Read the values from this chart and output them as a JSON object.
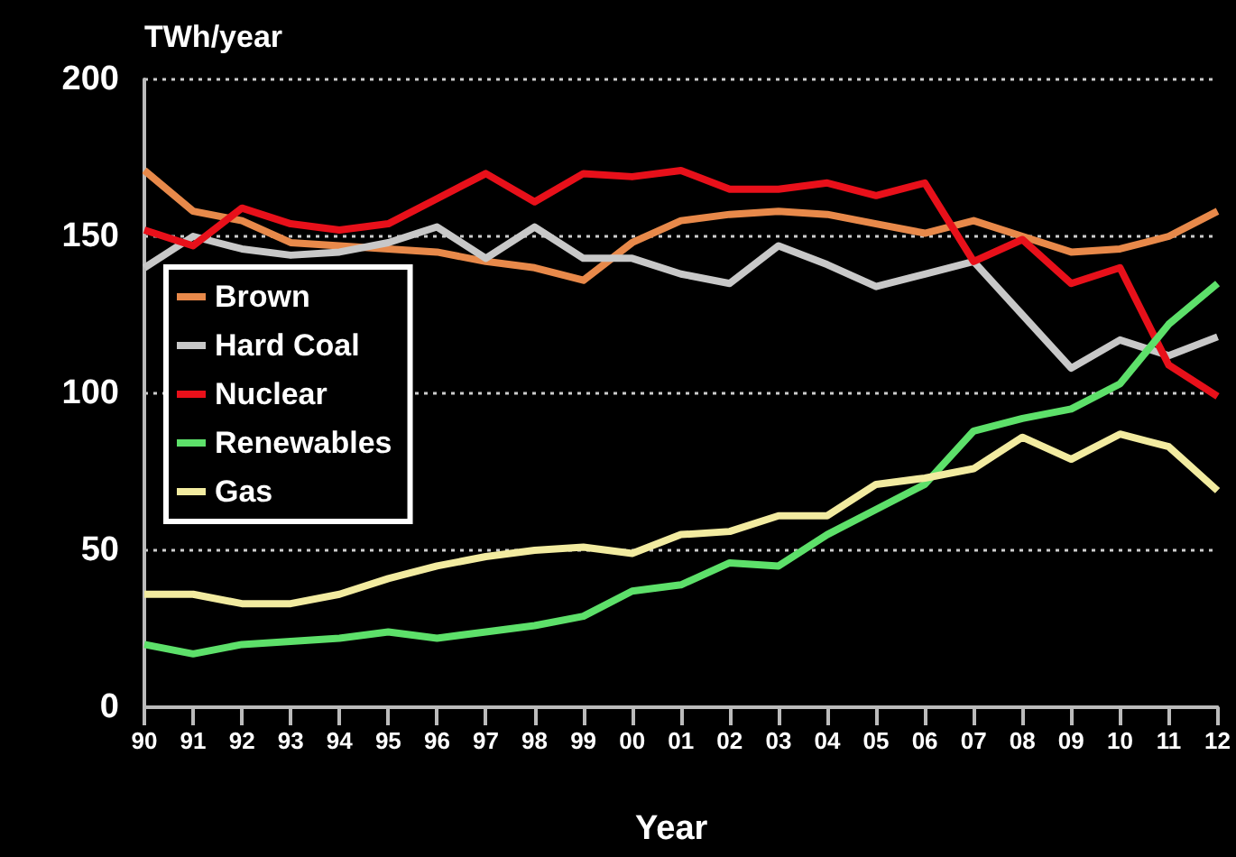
{
  "chart_data": {
    "type": "line",
    "ylabel": "TWh/year",
    "xlabel": "Year",
    "categories": [
      "90",
      "91",
      "92",
      "93",
      "94",
      "95",
      "96",
      "97",
      "98",
      "99",
      "00",
      "01",
      "02",
      "03",
      "04",
      "05",
      "06",
      "07",
      "08",
      "09",
      "10",
      "11",
      "12"
    ],
    "ylim": [
      0,
      200
    ],
    "yticks": [
      0,
      50,
      100,
      150,
      200
    ],
    "grid": "y",
    "legend": "left",
    "marker": "none",
    "line_style": "solid",
    "series": [
      {
        "name": "Brown",
        "color": "#e8894a",
        "values": [
          171,
          158,
          155,
          148,
          147,
          146,
          145,
          142,
          140,
          136,
          148,
          155,
          157,
          158,
          157,
          154,
          151,
          155,
          150,
          145,
          146,
          150,
          158
        ]
      },
      {
        "name": "Hard Coal",
        "color": "#c8c8c8",
        "values": [
          140,
          150,
          146,
          144,
          145,
          148,
          153,
          143,
          153,
          143,
          143,
          138,
          135,
          147,
          141,
          134,
          138,
          142,
          125,
          108,
          117,
          112,
          118
        ]
      },
      {
        "name": "Nuclear",
        "color": "#e8101a",
        "values": [
          152,
          147,
          159,
          154,
          152,
          154,
          162,
          170,
          161,
          170,
          169,
          171,
          165,
          165,
          167,
          163,
          167,
          142,
          149,
          135,
          140,
          109,
          99
        ]
      },
      {
        "name": "Renewables",
        "color": "#5de06a",
        "values": [
          20,
          17,
          20,
          21,
          22,
          24,
          22,
          24,
          26,
          29,
          37,
          39,
          46,
          45,
          55,
          63,
          71,
          88,
          92,
          95,
          103,
          122,
          135
        ]
      },
      {
        "name": "Gas",
        "color": "#f2eba0",
        "values": [
          36,
          36,
          33,
          33,
          36,
          41,
          45,
          48,
          50,
          51,
          49,
          55,
          56,
          61,
          61,
          71,
          73,
          76,
          86,
          79,
          87,
          83,
          69
        ]
      }
    ]
  }
}
